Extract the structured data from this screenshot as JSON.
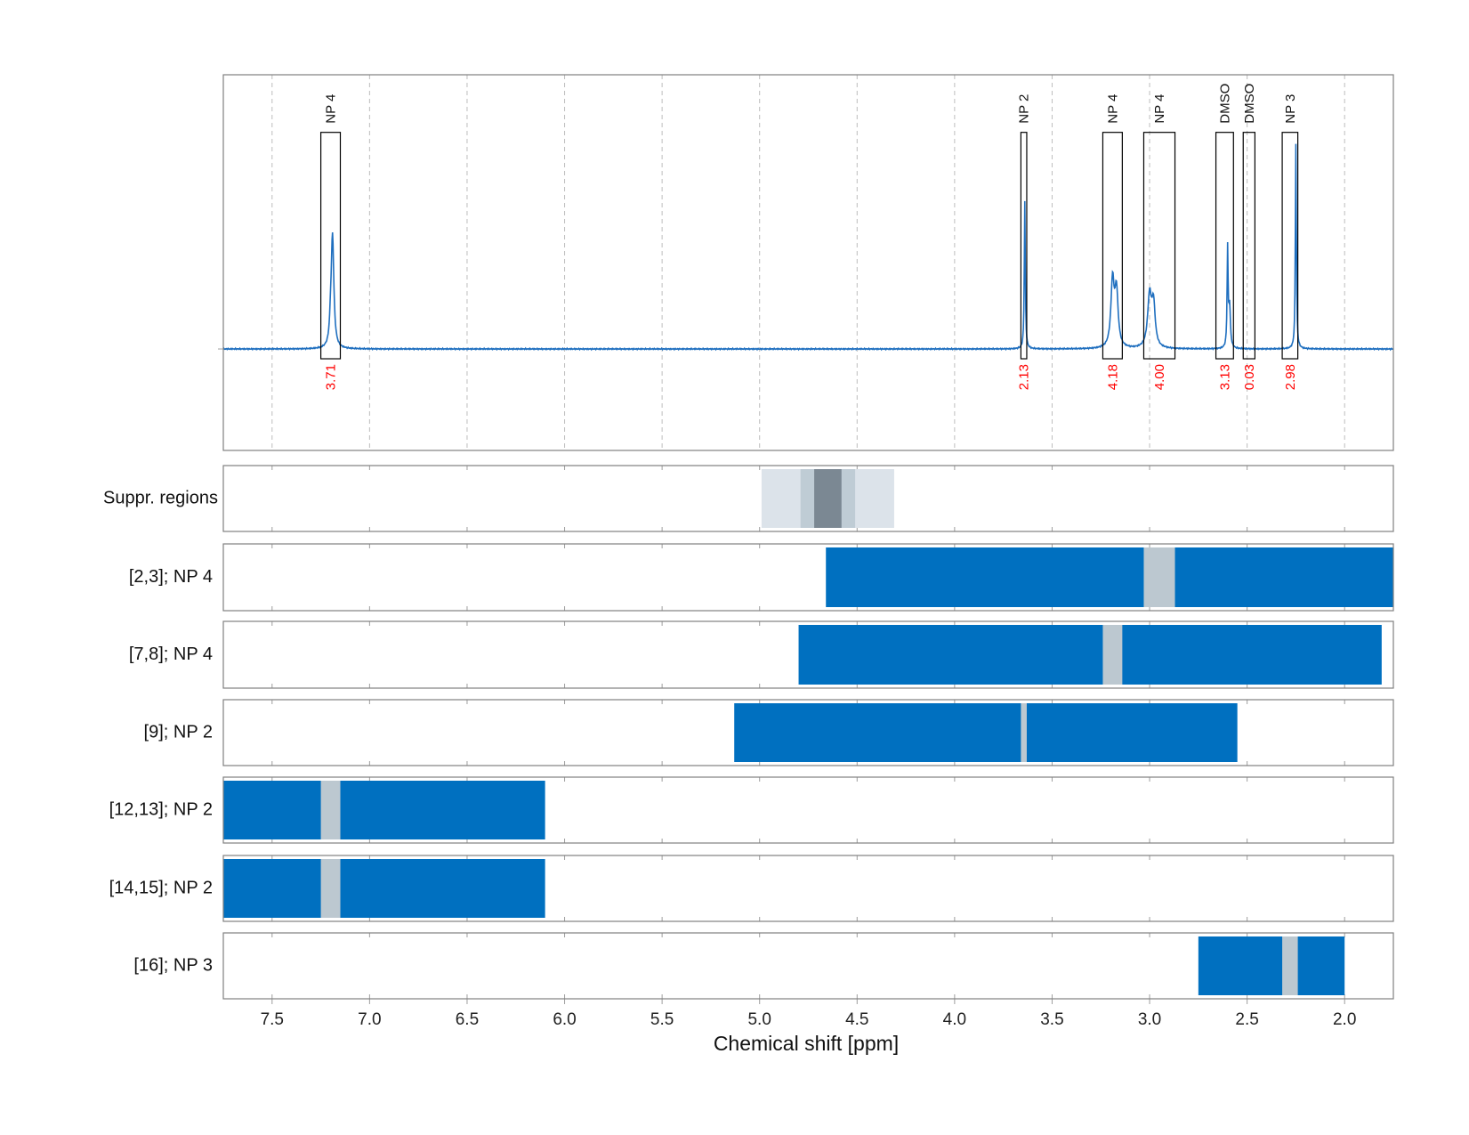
{
  "chart_data": {
    "type": "nmr-spectrum-with-ranges",
    "xlabel": "Chemical shift [ppm]",
    "xlim": [
      7.75,
      1.75
    ],
    "x_ticks": [
      7.5,
      7.0,
      6.5,
      6.0,
      5.5,
      5.0,
      4.5,
      4.0,
      3.5,
      3.0,
      2.5,
      2.0
    ],
    "x_tick_labels": [
      "7.5",
      "7.0",
      "6.5",
      "6.0",
      "5.5",
      "5.0",
      "4.5",
      "4.0",
      "3.5",
      "3.0",
      "2.5",
      "2.0"
    ],
    "grid": "vertical dashed",
    "spectrum": {
      "color": "#1f6fbf",
      "baseline": 0,
      "ylim": [
        -0.37,
        1.0
      ],
      "peaks": [
        {
          "center": 7.19,
          "height": 0.41,
          "width": 0.008
        },
        {
          "center": 7.2,
          "height": 0.06,
          "width": 0.006
        },
        {
          "center": 3.64,
          "height": 0.54,
          "width": 0.003
        },
        {
          "center": 3.19,
          "height": 0.24,
          "width": 0.01
        },
        {
          "center": 3.17,
          "height": 0.2,
          "width": 0.01
        },
        {
          "center": 3.0,
          "height": 0.19,
          "width": 0.012
        },
        {
          "center": 2.98,
          "height": 0.15,
          "width": 0.01
        },
        {
          "center": 2.6,
          "height": 0.36,
          "width": 0.003
        },
        {
          "center": 2.59,
          "height": 0.15,
          "width": 0.005
        },
        {
          "center": 2.25,
          "height": 0.75,
          "width": 0.003
        }
      ]
    },
    "peak_boxes": [
      {
        "label": "NP 4",
        "value": "3.71",
        "x_from": 7.25,
        "x_to": 7.15,
        "top": 0.79
      },
      {
        "label": "NP 2",
        "value": "2.13",
        "x_from": 3.66,
        "x_to": 3.63,
        "top": 0.79
      },
      {
        "label": "NP 4",
        "value": "4.18",
        "x_from": 3.24,
        "x_to": 3.14,
        "top": 0.79
      },
      {
        "label": "NP 4",
        "value": "4.00",
        "x_from": 3.03,
        "x_to": 2.87,
        "top": 0.79
      },
      {
        "label": "DMSO",
        "value": "3.13",
        "x_from": 2.66,
        "x_to": 2.57,
        "top": 0.79
      },
      {
        "label": "DMSO",
        "value": "0.03",
        "x_from": 2.52,
        "x_to": 2.46,
        "top": 0.79
      },
      {
        "label": "NP 3",
        "value": "2.98",
        "x_from": 2.32,
        "x_to": 2.24,
        "top": 0.79
      }
    ],
    "value_label_color": "#ff0000",
    "suppression": {
      "label": "Suppr. regions",
      "bands": [
        {
          "from": 4.99,
          "to": 4.31,
          "color": "#dce3ea"
        },
        {
          "from": 4.79,
          "to": 4.51,
          "color": "#bfccd5"
        },
        {
          "from": 4.72,
          "to": 4.58,
          "color": "#7b8893"
        }
      ]
    },
    "range_rows": [
      {
        "label": "[2,3]; NP 4",
        "from": 4.66,
        "to": 1.75,
        "gap": [
          3.03,
          2.87
        ]
      },
      {
        "label": "[7,8]; NP 4",
        "from": 4.8,
        "to": 1.81,
        "gap": [
          3.24,
          3.14
        ]
      },
      {
        "label": "[9]; NP 2",
        "from": 5.13,
        "to": 2.55,
        "gap": [
          3.66,
          3.63
        ]
      },
      {
        "label": "[12,13]; NP 2",
        "from": 7.75,
        "to": 6.1,
        "gap": [
          7.25,
          7.15
        ]
      },
      {
        "label": "[14,15]; NP 2",
        "from": 7.75,
        "to": 6.1,
        "gap": [
          7.25,
          7.15
        ]
      },
      {
        "label": "[16]; NP 3",
        "from": 2.75,
        "to": 2.0,
        "gap": [
          2.32,
          2.24
        ]
      }
    ],
    "range_color": "#0070c0",
    "gap_color": "#bcc8d0"
  }
}
